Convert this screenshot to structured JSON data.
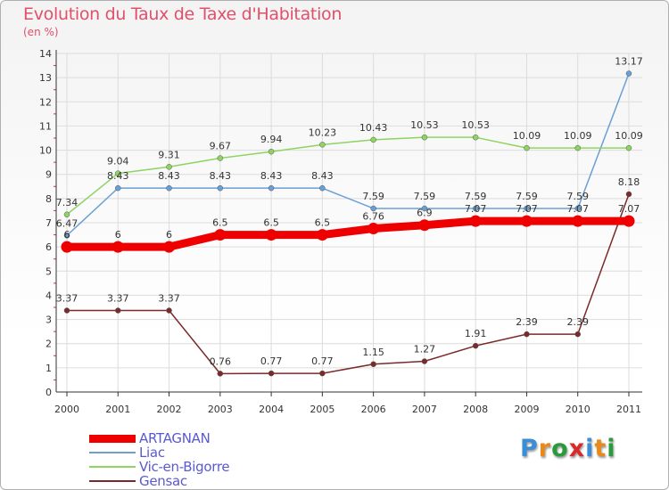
{
  "chart_data": {
    "type": "line",
    "title": "Evolution du Taux de Taxe d'Habitation",
    "subtitle": "(en %)",
    "x": [
      "2000",
      "2001",
      "2002",
      "2003",
      "2004",
      "2005",
      "2006",
      "2007",
      "2008",
      "2009",
      "2010",
      "2011"
    ],
    "ylim": [
      0,
      14
    ],
    "yticks": [
      "0",
      "1",
      "2",
      "3",
      "4",
      "5",
      "6",
      "7",
      "8",
      "9",
      "10",
      "11",
      "12",
      "13",
      "14"
    ],
    "grid": true,
    "legend_position": "bottom-left",
    "series": [
      {
        "name": "ARTAGNAN",
        "color": "#ee0000",
        "values": [
          6,
          6,
          6,
          6.5,
          6.5,
          6.5,
          6.76,
          6.9,
          7.07,
          7.07,
          7.07,
          7.07
        ],
        "labels": [
          "6",
          "6",
          "6",
          "6.5",
          "6.5",
          "6.5",
          "6.76",
          "6.9",
          "7.07",
          "7.07",
          "7.07",
          "7.07"
        ]
      },
      {
        "name": "Liac",
        "color": "#6a9fd4",
        "values": [
          6.47,
          8.43,
          8.43,
          8.43,
          8.43,
          8.43,
          7.59,
          7.59,
          7.59,
          7.59,
          7.59,
          13.17
        ],
        "labels": [
          "6.47",
          "8.43",
          "8.43",
          "8.43",
          "8.43",
          "8.43",
          "7.59",
          "7.59",
          "7.59",
          "7.59",
          "7.59",
          "13.17"
        ]
      },
      {
        "name": "Vic-en-Bigorre",
        "color": "#8ed461",
        "values": [
          7.34,
          9.04,
          9.31,
          9.67,
          9.94,
          10.23,
          10.43,
          10.53,
          10.53,
          10.09,
          10.09,
          10.09
        ],
        "labels": [
          "7.34",
          "9.04",
          "9.31",
          "9.67",
          "9.94",
          "10.23",
          "10.43",
          "10.53",
          "10.53",
          "10.09",
          "10.09",
          "10.09"
        ]
      },
      {
        "name": "Gensac",
        "color": "#7a2a2a",
        "values": [
          3.37,
          3.37,
          3.37,
          0.76,
          0.77,
          0.77,
          1.15,
          1.27,
          1.91,
          2.39,
          2.39,
          8.18
        ],
        "labels": [
          "3.37",
          "3.37",
          "3.37",
          "0.76",
          "0.77",
          "0.77",
          "1.15",
          "1.27",
          "1.91",
          "2.39",
          "2.39",
          "8.18"
        ]
      }
    ]
  },
  "brand": {
    "letters": [
      "P",
      "r",
      "o",
      "x",
      "i",
      "t",
      "i"
    ],
    "colors": [
      "#3a8ed8",
      "#e88a1a",
      "#2a9a3a",
      "#d82a2a",
      "#3a8ed8",
      "#e88a1a",
      "#2a9a3a"
    ]
  }
}
